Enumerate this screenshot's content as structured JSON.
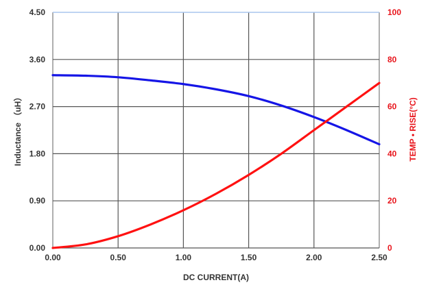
{
  "chart_data": {
    "type": "line",
    "xlabel": "DC CURRENT(A)",
    "ylabel_left": "Inductance （uH）",
    "ylabel_right": "TEMP • RISE(°C)",
    "xlim": [
      0,
      2.5
    ],
    "ylim_left": [
      0,
      4.5
    ],
    "ylim_right": [
      0,
      100
    ],
    "x_ticks": [
      "0.00",
      "0.50",
      "1.00",
      "1.50",
      "2.00",
      "2.50"
    ],
    "y_left_ticks": [
      "0.00",
      "0.90",
      "1.80",
      "2.70",
      "3.60",
      "4.50"
    ],
    "y_right_ticks": [
      "0",
      "20",
      "40",
      "60",
      "80",
      "100"
    ],
    "grid": true,
    "series": [
      {
        "axis": "left",
        "color": "#1515e6",
        "x": [
          0,
          0.25,
          0.5,
          0.75,
          1.0,
          1.25,
          1.5,
          1.75,
          2.0,
          2.25,
          2.5
        ],
        "y": [
          3.3,
          3.29,
          3.26,
          3.2,
          3.13,
          3.03,
          2.9,
          2.72,
          2.5,
          2.25,
          1.98
        ]
      },
      {
        "axis": "right",
        "color": "#ff1111",
        "x": [
          0,
          0.25,
          0.5,
          0.75,
          1.0,
          1.25,
          1.5,
          1.75,
          2.0,
          2.25,
          2.5
        ],
        "y": [
          0,
          1.5,
          5,
          10,
          16,
          23,
          31,
          40,
          50,
          60,
          70
        ]
      }
    ]
  }
}
